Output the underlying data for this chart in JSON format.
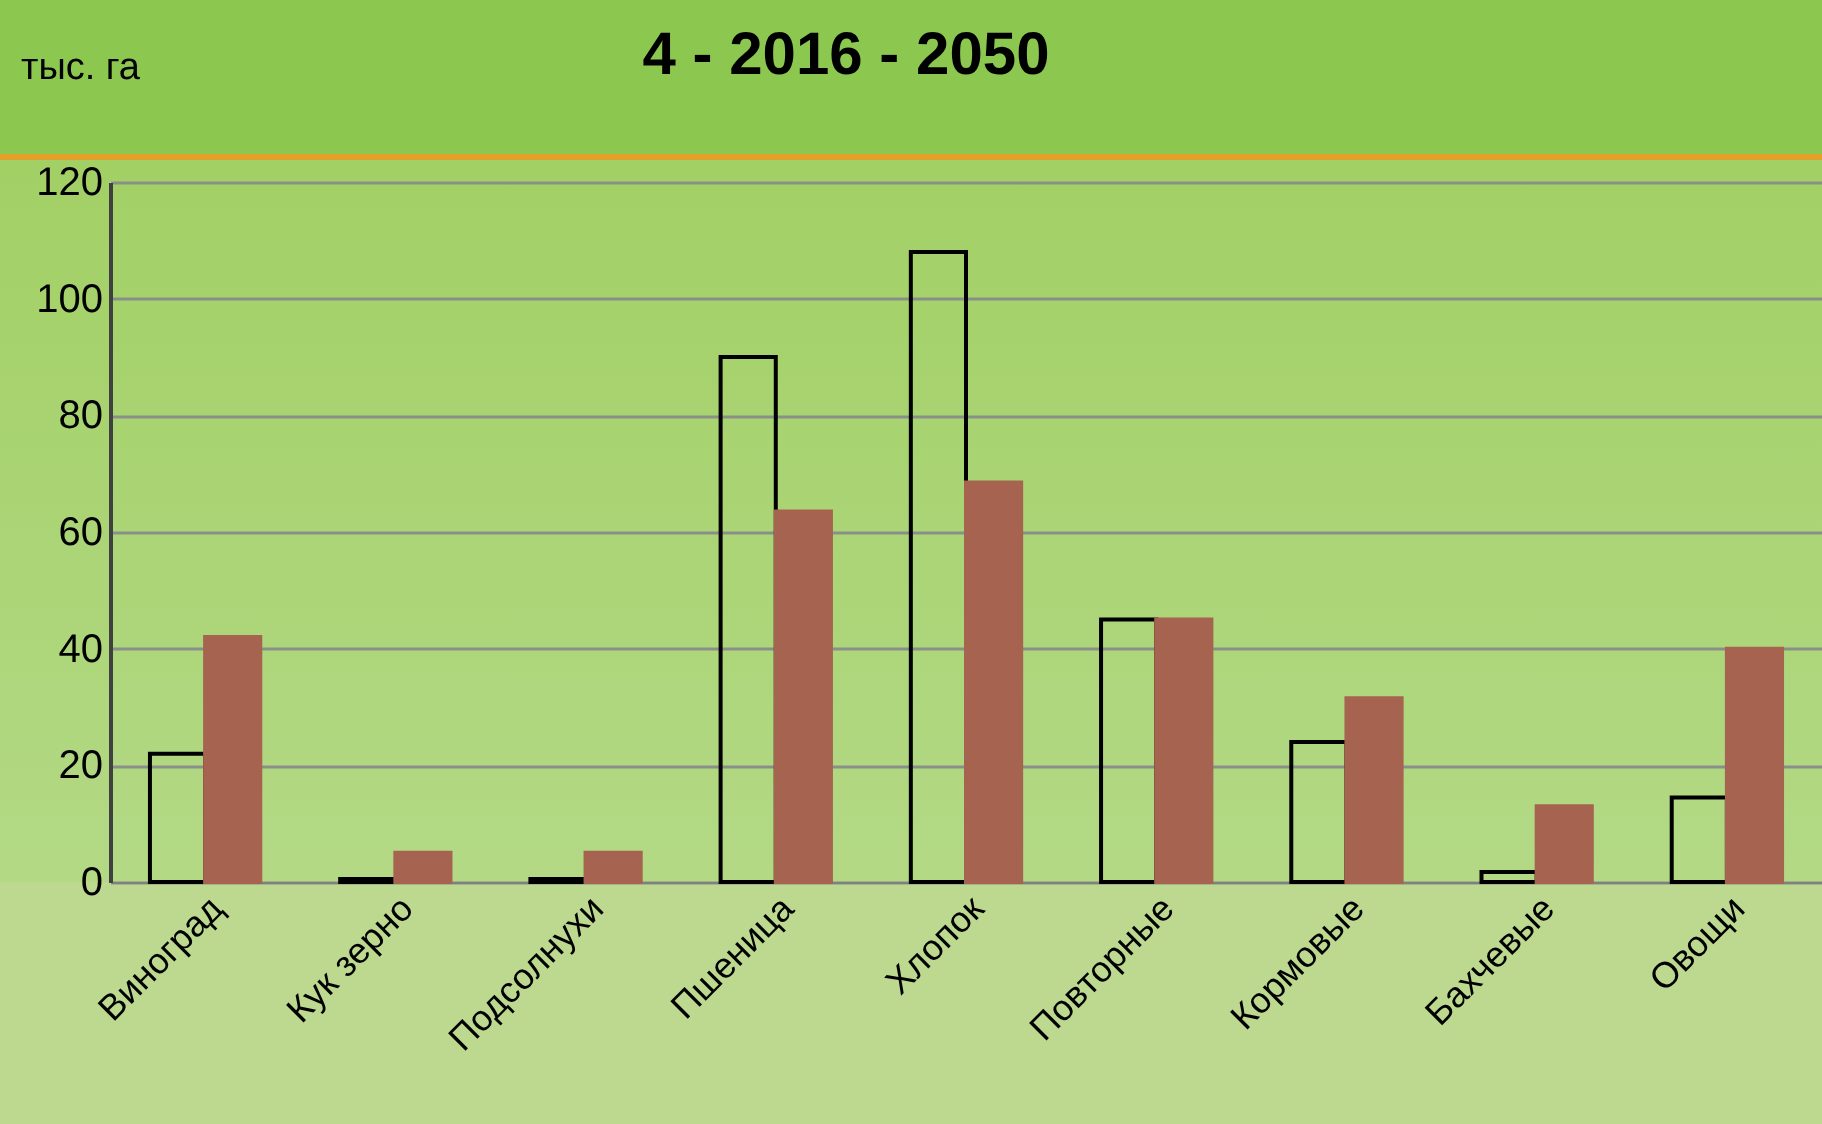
{
  "chart_data": {
    "type": "bar",
    "title": "4 - 2016 - 2050",
    "ylabel": "тыс. га",
    "categories": [
      "Виноград",
      "Кук зерно",
      "Подсолнухи",
      "Пшеница",
      "Хлопок",
      "Повторные",
      "Кормовые",
      "Бахчевые",
      "Овощи"
    ],
    "series": [
      {
        "color": "#000000",
        "values": [
          22,
          0.5,
          0.5,
          90,
          108,
          45,
          24,
          1.7,
          14.5
        ]
      },
      {
        "color": "#a66450",
        "values": [
          42,
          5,
          5,
          63.5,
          68.5,
          45,
          31.5,
          13,
          40
        ]
      }
    ],
    "ylim": [
      0,
      120
    ],
    "yticks": [
      0,
      20,
      40,
      60,
      80,
      100,
      120
    ],
    "grid": "y"
  }
}
